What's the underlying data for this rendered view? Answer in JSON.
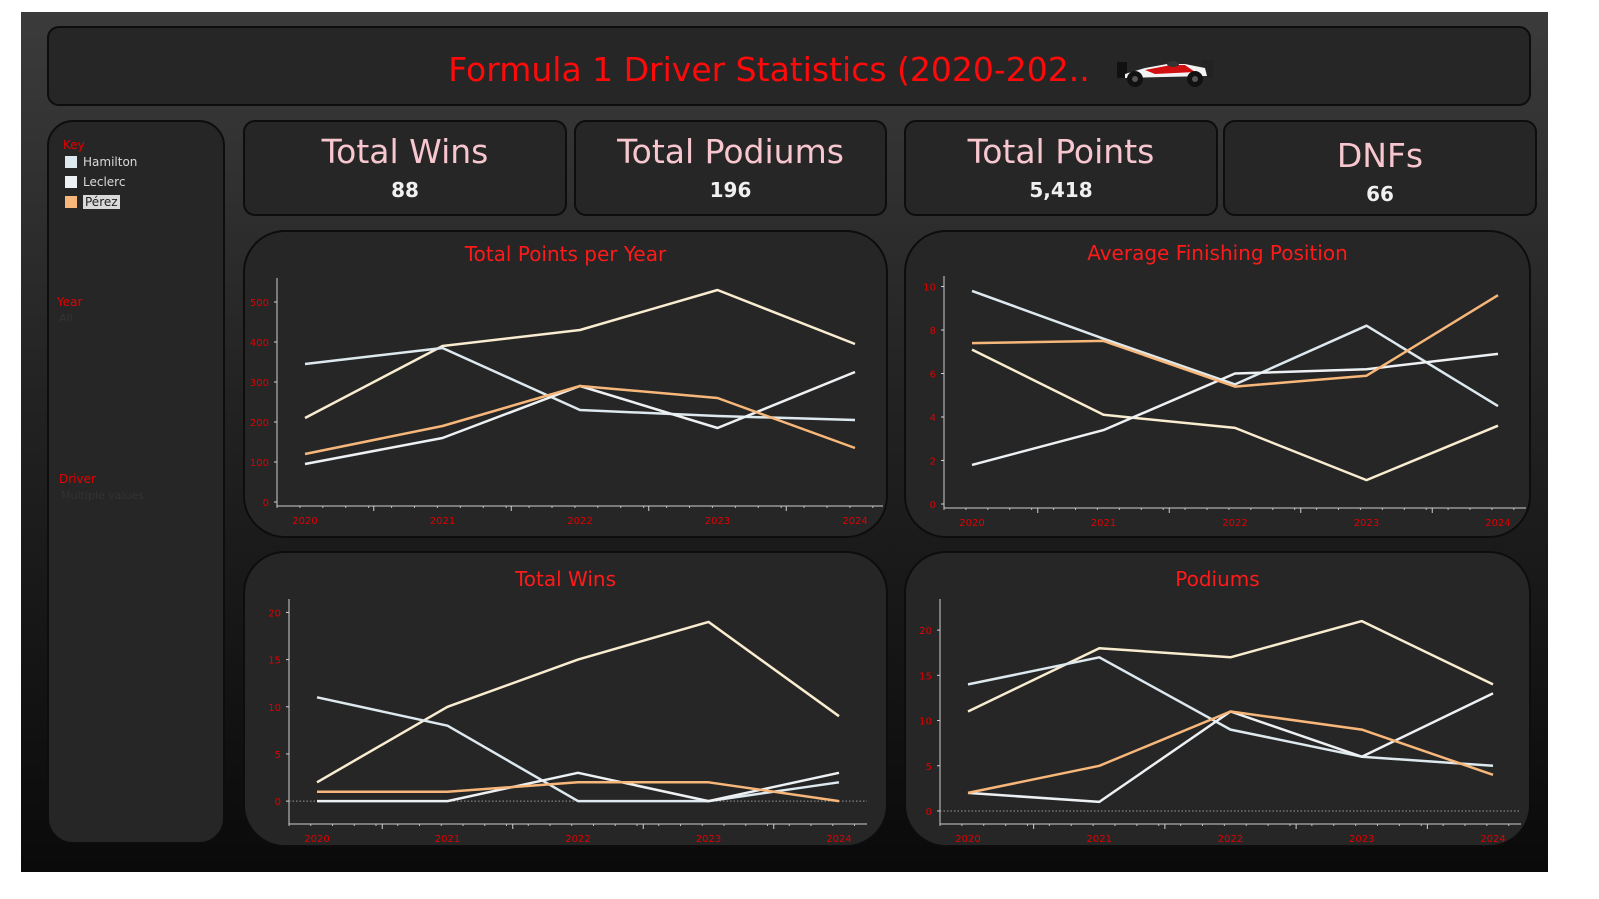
{
  "header": {
    "title": "Formula 1 Driver Statistics (2020-202.."
  },
  "sidebar": {
    "key_label": "Key",
    "drivers": [
      {
        "name": "Hamilton",
        "color": "#dde9ee",
        "selected": false
      },
      {
        "name": "Leclerc",
        "color": "#eef1f4",
        "selected": false
      },
      {
        "name": "Pérez",
        "color": "#f8b77a",
        "selected": true
      }
    ],
    "year_label": "Year",
    "year_value": "All",
    "driver_label": "Driver",
    "driver_value": "Multiple values"
  },
  "kpis": [
    {
      "title": "Total Wins",
      "value": "88"
    },
    {
      "title": "Total Podiums",
      "value": "196"
    },
    {
      "title": "Total Points",
      "value": "5,418"
    },
    {
      "title": "DNFs",
      "value": "66"
    }
  ],
  "series_colors": [
    "#f9ecd0",
    "#dde9ee",
    "#eef1f4",
    "#f8b77a"
  ],
  "chart_data": [
    {
      "id": "points",
      "type": "line",
      "title": "Total Points per Year",
      "x": [
        "2020",
        "2021",
        "2022",
        "2023",
        "2024"
      ],
      "yticks": [
        0,
        100,
        200,
        300,
        400,
        500
      ],
      "ylim": [
        0,
        550
      ],
      "series": [
        {
          "values": [
            210,
            390,
            430,
            530,
            395
          ]
        },
        {
          "values": [
            345,
            385,
            230,
            215,
            205
          ]
        },
        {
          "values": [
            95,
            160,
            290,
            185,
            325
          ]
        },
        {
          "values": [
            120,
            190,
            290,
            260,
            135
          ]
        }
      ]
    },
    {
      "id": "avgpos",
      "type": "line",
      "title": "Average Finishing Position",
      "x": [
        "2020",
        "2021",
        "2022",
        "2023",
        "2024"
      ],
      "yticks": [
        0,
        2,
        4,
        6,
        8,
        10
      ],
      "ylim": [
        0,
        10.3
      ],
      "series": [
        {
          "values": [
            7.1,
            4.1,
            3.5,
            1.1,
            3.6
          ]
        },
        {
          "values": [
            9.8,
            7.6,
            5.5,
            8.2,
            4.5
          ]
        },
        {
          "values": [
            1.8,
            3.4,
            6.0,
            6.2,
            6.9
          ]
        },
        {
          "values": [
            7.4,
            7.5,
            5.4,
            5.9,
            9.6
          ]
        }
      ]
    },
    {
      "id": "wins",
      "type": "line",
      "title": "Total Wins",
      "x": [
        "2020",
        "2021",
        "2022",
        "2023",
        "2024"
      ],
      "yticks": [
        0,
        5,
        10,
        15,
        20
      ],
      "ylim": [
        -2,
        21
      ],
      "series": [
        {
          "values": [
            2,
            10,
            15,
            19,
            9
          ]
        },
        {
          "values": [
            11,
            8,
            0,
            0,
            2
          ]
        },
        {
          "values": [
            0,
            0,
            3,
            0,
            3
          ]
        },
        {
          "values": [
            1,
            1,
            2,
            2,
            0
          ]
        }
      ]
    },
    {
      "id": "podiums",
      "type": "line",
      "title": "Podiums",
      "x": [
        "2020",
        "2021",
        "2022",
        "2023",
        "2024"
      ],
      "yticks": [
        0,
        5,
        10,
        15,
        20
      ],
      "ylim": [
        -1,
        23
      ],
      "series": [
        {
          "values": [
            11,
            18,
            17,
            21,
            14
          ]
        },
        {
          "values": [
            14,
            17,
            9,
            6,
            5
          ]
        },
        {
          "values": [
            2,
            1,
            11,
            6,
            13
          ]
        },
        {
          "values": [
            2,
            5,
            11,
            9,
            4
          ]
        }
      ]
    }
  ]
}
